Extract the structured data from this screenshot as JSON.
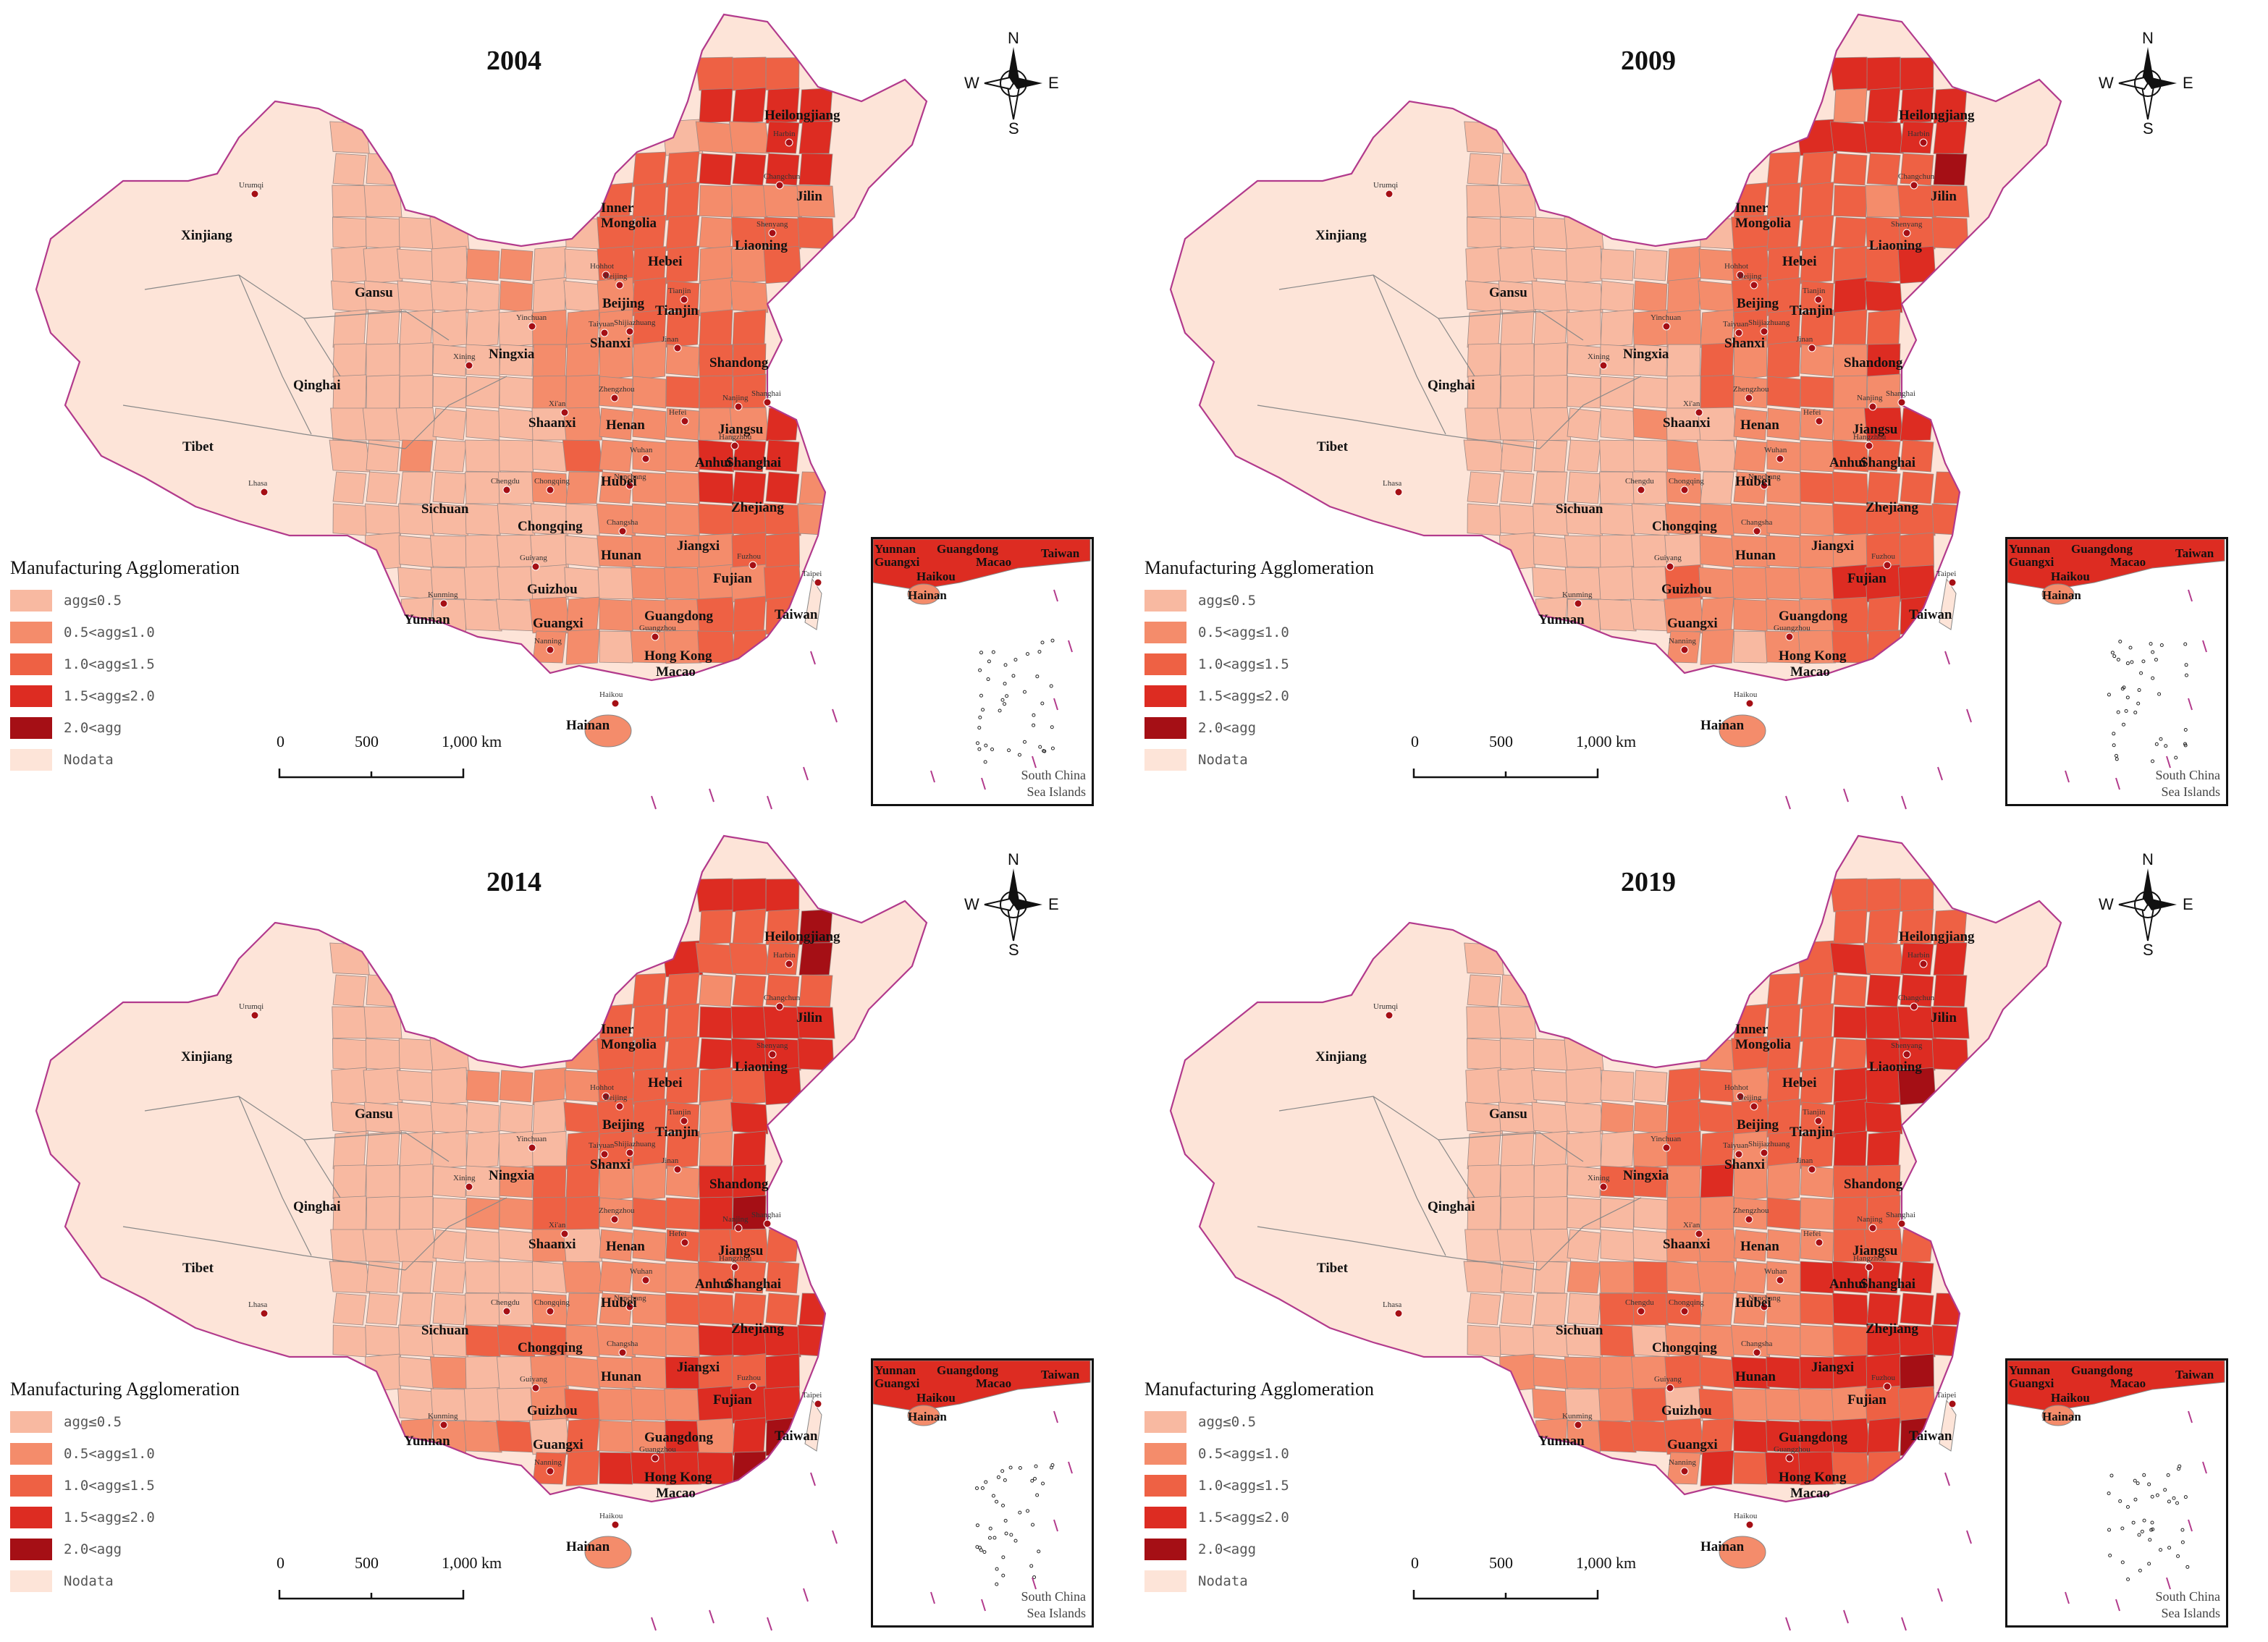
{
  "legend": {
    "title": "Manufacturing Agglomeration",
    "items": [
      {
        "label": "agg≤0.5",
        "color": "#f8b9a1"
      },
      {
        "label": "0.5<agg≤1.0",
        "color": "#f48c6b"
      },
      {
        "label": "1.0<agg≤1.5",
        "color": "#ee6144"
      },
      {
        "label": "1.5<agg≤2.0",
        "color": "#dd2c22"
      },
      {
        "label": "2.0<agg",
        "color": "#a50f15"
      },
      {
        "label": "Nodata",
        "color": "#fde4d8"
      }
    ]
  },
  "compass": {
    "n": "N",
    "s": "S",
    "e": "E",
    "w": "W"
  },
  "scalebar": {
    "ticks": [
      "0",
      "500",
      "1,000 km"
    ]
  },
  "inset": {
    "labels": [
      "Yunnan",
      "Guangdong",
      "Taiwan",
      "Guangxi",
      "Macao",
      "Haikou",
      "Hainan"
    ],
    "note_line1": "South China",
    "note_line2": "Sea Islands"
  },
  "regions": [
    "Heilongjiang",
    "Jilin",
    "Liaoning",
    "Inner Mongolia",
    "Xinjiang",
    "Gansu",
    "Hebei",
    "Beijing",
    "Tianjin",
    "Ningxia",
    "Shanxi",
    "Shandong",
    "Qinghai",
    "Shaanxi",
    "Henan",
    "Jiangsu",
    "Tibet",
    "Anhui",
    "Shanghai",
    "Hubei",
    "Sichuan",
    "Zhejiang",
    "Chongqing",
    "Hunan",
    "Jiangxi",
    "Taiwan",
    "Fujian",
    "Guizhou",
    "Yunnan",
    "Guangxi",
    "Guangdong",
    "Hong Kong",
    "Macao",
    "Hainan"
  ],
  "cities": [
    "Harbin",
    "Changchun",
    "Urumqi",
    "Shenyang",
    "Hohhot",
    "Beijing",
    "Tianjin",
    "Yinchuan",
    "Shijiazhuang",
    "Taiyuan",
    "Xining",
    "Jinan",
    "Zhengzhou",
    "Xi'an",
    "Nanjing",
    "Hefei",
    "Shanghai",
    "Hangzhou",
    "Wuhan",
    "Lhasa",
    "Chengdu",
    "Chongqing",
    "Changsha",
    "Nanchang",
    "Fuzhou",
    "Taipei",
    "Guiyang",
    "Kunming",
    "Guangzhou",
    "Nanning",
    "Haikou"
  ],
  "panels": [
    {
      "year": "2004"
    },
    {
      "year": "2009"
    },
    {
      "year": "2014"
    },
    {
      "year": "2019"
    }
  ]
}
